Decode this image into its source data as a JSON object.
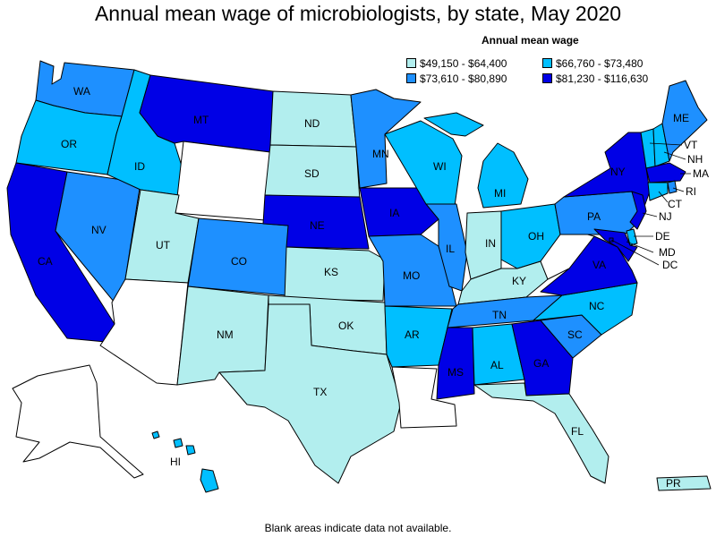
{
  "title": "Annual mean wage of microbiologists, by state, May 2020",
  "legend": {
    "title": "Annual mean wage",
    "bins": [
      {
        "label": "$49,150 - $64,400",
        "color": "#b2eeee"
      },
      {
        "label": "$66,760 - $73,480",
        "color": "#00bfff"
      },
      {
        "label": "$73,610 - $80,890",
        "color": "#1e90ff"
      },
      {
        "label": "$81,230 - $116,630",
        "color": "#0000e6"
      }
    ]
  },
  "no_data_color": "#ffffff",
  "footnote": "Blank areas indicate data not available.",
  "states": {
    "WA": {
      "bin": 2
    },
    "OR": {
      "bin": 1
    },
    "CA": {
      "bin": 3
    },
    "NV": {
      "bin": 2
    },
    "ID": {
      "bin": 1
    },
    "MT": {
      "bin": 3
    },
    "WY": {
      "bin": null
    },
    "UT": {
      "bin": 0
    },
    "AZ": {
      "bin": null
    },
    "CO": {
      "bin": 2
    },
    "NM": {
      "bin": 0
    },
    "ND": {
      "bin": 0
    },
    "SD": {
      "bin": 0
    },
    "NE": {
      "bin": 3
    },
    "KS": {
      "bin": 0
    },
    "OK": {
      "bin": 0
    },
    "TX": {
      "bin": 0
    },
    "MN": {
      "bin": 2
    },
    "IA": {
      "bin": 3
    },
    "MO": {
      "bin": 2
    },
    "AR": {
      "bin": 1
    },
    "LA": {
      "bin": null
    },
    "WI": {
      "bin": 1
    },
    "IL": {
      "bin": 2
    },
    "MI": {
      "bin": 1
    },
    "IN": {
      "bin": 0
    },
    "OH": {
      "bin": 1
    },
    "KY": {
      "bin": 0
    },
    "TN": {
      "bin": 2
    },
    "MS": {
      "bin": 3
    },
    "AL": {
      "bin": 1
    },
    "GA": {
      "bin": 3
    },
    "FL": {
      "bin": 0
    },
    "SC": {
      "bin": 2
    },
    "NC": {
      "bin": 1
    },
    "VA": {
      "bin": 3
    },
    "WV": {
      "bin": null
    },
    "PA": {
      "bin": 2
    },
    "NY": {
      "bin": 3
    },
    "ME": {
      "bin": 2
    },
    "VT": {
      "bin": 1
    },
    "NH": {
      "bin": 1
    },
    "MA": {
      "bin": 3
    },
    "RI": {
      "bin": 2
    },
    "CT": {
      "bin": 1
    },
    "NJ": {
      "bin": 3
    },
    "DE": {
      "bin": 1
    },
    "MD": {
      "bin": 3
    },
    "DC": {
      "bin": 3
    },
    "AK": {
      "bin": null
    },
    "HI": {
      "bin": 1
    },
    "PR": {
      "bin": 0
    }
  }
}
